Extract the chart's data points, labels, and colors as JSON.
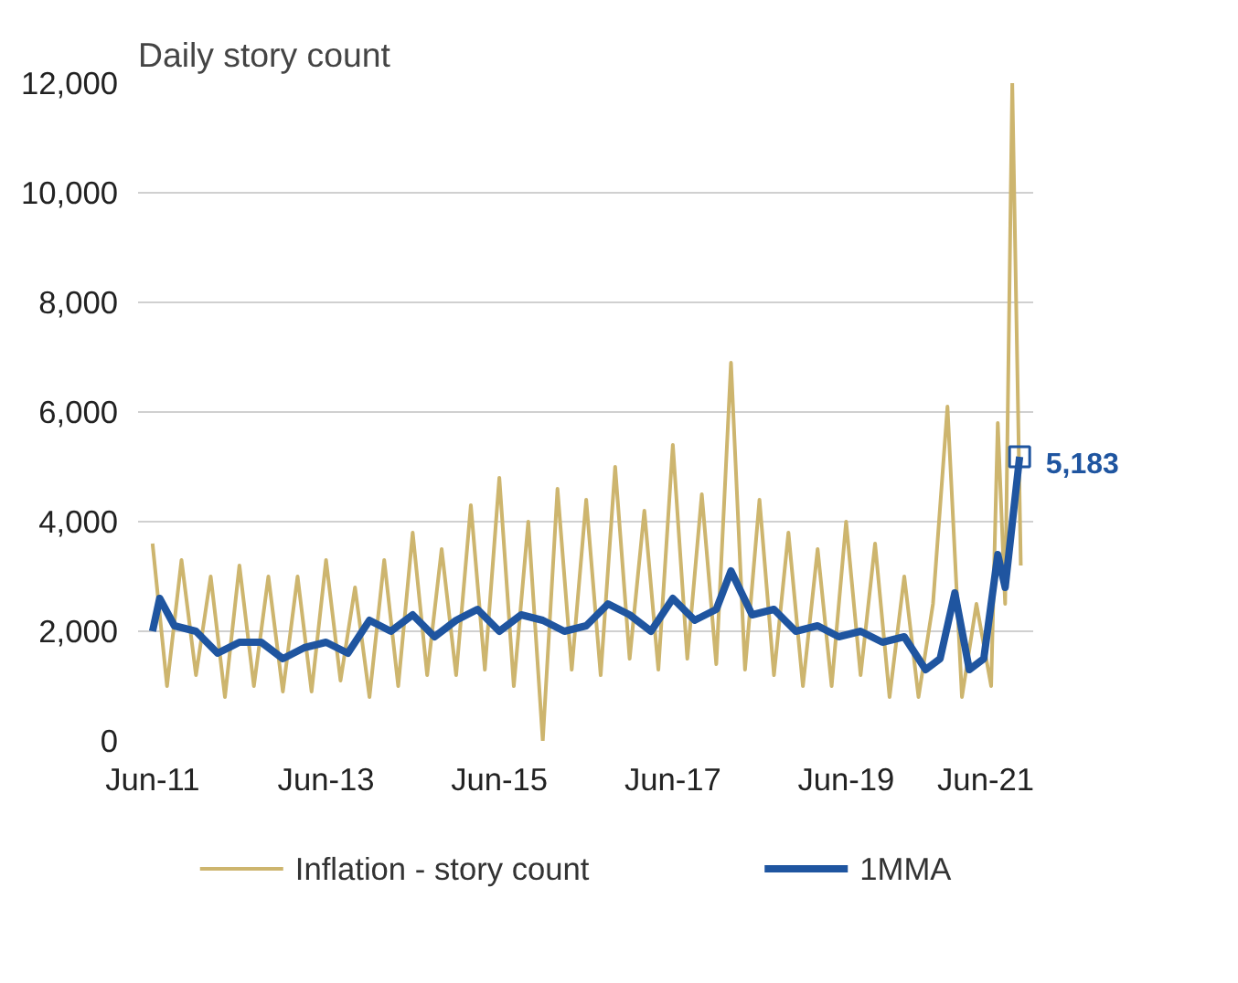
{
  "chart_data": {
    "type": "line",
    "ylabel": "Daily story count",
    "x": [
      "2011-06",
      "2011-08",
      "2011-10",
      "2011-12",
      "2012-02",
      "2012-04",
      "2012-06",
      "2012-08",
      "2012-10",
      "2012-12",
      "2013-02",
      "2013-04",
      "2013-06",
      "2013-08",
      "2013-10",
      "2013-12",
      "2014-02",
      "2014-04",
      "2014-06",
      "2014-08",
      "2014-10",
      "2014-12",
      "2015-02",
      "2015-04",
      "2015-06",
      "2015-08",
      "2015-10",
      "2015-12",
      "2016-02",
      "2016-04",
      "2016-06",
      "2016-08",
      "2016-10",
      "2016-12",
      "2017-02",
      "2017-04",
      "2017-06",
      "2017-08",
      "2017-10",
      "2017-12",
      "2018-02",
      "2018-04",
      "2018-06",
      "2018-08",
      "2018-10",
      "2018-12",
      "2019-02",
      "2019-04",
      "2019-06",
      "2019-08",
      "2019-10",
      "2019-12",
      "2020-02",
      "2020-04",
      "2020-06",
      "2020-08",
      "2020-10",
      "2020-12",
      "2021-02",
      "2021-03",
      "2021-04",
      "2021-05",
      "2021-06-20"
    ],
    "series": [
      {
        "name": "Inflation - story count",
        "color": "#cdb56e",
        "values": [
          3600,
          1000,
          3300,
          1200,
          3000,
          800,
          3200,
          1000,
          3000,
          900,
          3000,
          900,
          3300,
          1100,
          2800,
          800,
          3300,
          1000,
          3800,
          1200,
          3500,
          1200,
          4300,
          1300,
          4800,
          1000,
          4000,
          0,
          4600,
          1300,
          4400,
          1200,
          5000,
          1500,
          4200,
          1300,
          5400,
          1500,
          4500,
          1400,
          6900,
          1300,
          4400,
          1200,
          3800,
          1000,
          3500,
          1000,
          4000,
          1200,
          3600,
          800,
          3000,
          800,
          2500,
          6100,
          800,
          2500,
          1000,
          5800,
          2500,
          12000,
          3200
        ]
      },
      {
        "name": "1MMA",
        "color": "#1f55a0",
        "x": [
          "2011-06",
          "2011-07",
          "2011-09",
          "2011-12",
          "2012-03",
          "2012-06",
          "2012-09",
          "2012-12",
          "2013-03",
          "2013-06",
          "2013-09",
          "2013-12",
          "2014-03",
          "2014-06",
          "2014-09",
          "2014-12",
          "2015-03",
          "2015-06",
          "2015-09",
          "2015-12",
          "2016-03",
          "2016-06",
          "2016-09",
          "2016-12",
          "2017-03",
          "2017-06",
          "2017-09",
          "2017-12",
          "2018-02",
          "2018-05",
          "2018-08",
          "2018-11",
          "2019-02",
          "2019-05",
          "2019-08",
          "2019-11",
          "2020-02",
          "2020-05",
          "2020-07",
          "2020-09",
          "2020-11",
          "2021-01",
          "2021-03",
          "2021-04",
          "2021-06-15"
        ],
        "values": [
          2000,
          2600,
          2100,
          2000,
          1600,
          1800,
          1800,
          1500,
          1700,
          1800,
          1600,
          2200,
          2000,
          2300,
          1900,
          2200,
          2400,
          2000,
          2300,
          2200,
          2000,
          2100,
          2500,
          2300,
          2000,
          2600,
          2200,
          2400,
          3100,
          2300,
          2400,
          2000,
          2100,
          1900,
          2000,
          1800,
          1900,
          1300,
          1500,
          2700,
          1300,
          1500,
          3400,
          2800,
          5183
        ]
      }
    ],
    "xlim": [
      "2011-04",
      "2021-08"
    ],
    "xticks": [
      {
        "value": "2011-06",
        "label": "Jun-11"
      },
      {
        "value": "2013-06",
        "label": "Jun-13"
      },
      {
        "value": "2015-06",
        "label": "Jun-15"
      },
      {
        "value": "2017-06",
        "label": "Jun-17"
      },
      {
        "value": "2019-06",
        "label": "Jun-19"
      },
      {
        "value": "2021-06",
        "label": "Jun-21"
      }
    ],
    "ylim": [
      0,
      12000
    ],
    "yticks": [
      {
        "value": 0,
        "label": "0"
      },
      {
        "value": 2000,
        "label": "2,000"
      },
      {
        "value": 4000,
        "label": "4,000"
      },
      {
        "value": 6000,
        "label": "6,000"
      },
      {
        "value": 8000,
        "label": "8,000"
      },
      {
        "value": 10000,
        "label": "10,000"
      },
      {
        "value": 12000,
        "label": "12,000"
      }
    ],
    "grid": "y",
    "legend": "bottom",
    "annotations": [
      {
        "text": "5,183",
        "x": "2021-06-15",
        "y": 5183
      }
    ]
  }
}
